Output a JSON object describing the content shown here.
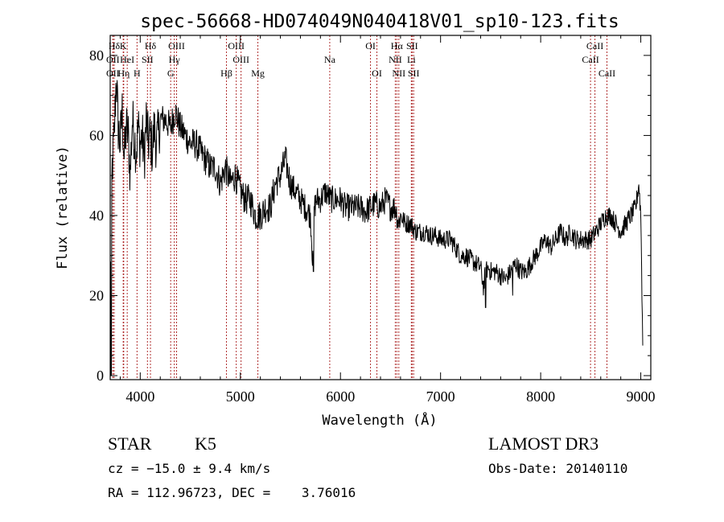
{
  "chart_data": {
    "type": "line",
    "title": "spec-56668-HD074049N040418V01_sp10-123.fits",
    "xlabel": "Wavelength (Å)",
    "ylabel": "Flux (relative)",
    "xlim": [
      3700,
      9100
    ],
    "ylim": [
      -1,
      85
    ],
    "xticks": [
      4000,
      5000,
      6000,
      7000,
      8000,
      9000
    ],
    "yticks": [
      0,
      20,
      40,
      60,
      80
    ],
    "spectrum": {
      "x": [
        3700,
        3720,
        3740,
        3760,
        3780,
        3800,
        3820,
        3840,
        3860,
        3880,
        3900,
        3920,
        3940,
        3960,
        3980,
        4000,
        4020,
        4040,
        4060,
        4080,
        4100,
        4120,
        4140,
        4160,
        4180,
        4200,
        4250,
        4300,
        4350,
        4400,
        4450,
        4500,
        4550,
        4600,
        4650,
        4700,
        4750,
        4800,
        4850,
        4900,
        4950,
        5000,
        5050,
        5100,
        5150,
        5200,
        5250,
        5300,
        5350,
        5400,
        5450,
        5500,
        5550,
        5600,
        5650,
        5700,
        5720,
        5740,
        5760,
        5800,
        5850,
        5900,
        5950,
        6000,
        6050,
        6100,
        6150,
        6200,
        6250,
        6300,
        6350,
        6400,
        6450,
        6500,
        6550,
        6580,
        6600,
        6650,
        6700,
        6750,
        6800,
        6850,
        6900,
        6950,
        7000,
        7050,
        7100,
        7150,
        7200,
        7250,
        7300,
        7350,
        7400,
        7430,
        7450,
        7480,
        7500,
        7550,
        7600,
        7650,
        7700,
        7750,
        7800,
        7850,
        7900,
        7950,
        8000,
        8050,
        8100,
        8150,
        8200,
        8250,
        8300,
        8350,
        8400,
        8450,
        8500,
        8550,
        8600,
        8650,
        8700,
        8750,
        8800,
        8850,
        8900,
        8950,
        8980,
        9000,
        9020
      ],
      "y": [
        26,
        52,
        60,
        75,
        62,
        58,
        66,
        54,
        62,
        60,
        50,
        64,
        60,
        56,
        62,
        58,
        60,
        54,
        64,
        58,
        60,
        56,
        62,
        58,
        60,
        64,
        64,
        62,
        66,
        62,
        60,
        58,
        58,
        56,
        54,
        52,
        52,
        48,
        52,
        48,
        50,
        46,
        44,
        44,
        40,
        40,
        42,
        42,
        48,
        50,
        54,
        48,
        46,
        44,
        42,
        40,
        30,
        42,
        44,
        44,
        46,
        44,
        44,
        44,
        42,
        42,
        42,
        42,
        41,
        42,
        43,
        42,
        44,
        42,
        42,
        38,
        40,
        38,
        38,
        36,
        36,
        36,
        35,
        35,
        34,
        34,
        34,
        32,
        30,
        30,
        29,
        28,
        27,
        22,
        26,
        27,
        26,
        26,
        25,
        24,
        26,
        28,
        26,
        26,
        28,
        30,
        32,
        34,
        32,
        34,
        36,
        34,
        36,
        34,
        34,
        34,
        34,
        36,
        38,
        40,
        40,
        38,
        36,
        38,
        40,
        42,
        48,
        40,
        8
      ],
      "min_spikes": [
        {
          "x": 5730,
          "y": 26
        },
        {
          "x": 7450,
          "y": 17
        },
        {
          "x": 7720,
          "y": 20
        },
        {
          "x": 3710,
          "y": 0
        }
      ]
    },
    "spectral_lines": [
      {
        "name": "Hδ",
        "x": 3740,
        "row": 1
      },
      {
        "name": "K",
        "x": 3830,
        "row": 1
      },
      {
        "name": "Hδ",
        "x": 4102,
        "row": 1
      },
      {
        "name": "OII",
        "x": 3727,
        "row": 2
      },
      {
        "name": "HeI",
        "x": 3870,
        "row": 2
      },
      {
        "name": "SII",
        "x": 4072,
        "row": 2
      },
      {
        "name": "OII",
        "x": 3727,
        "row": 3
      },
      {
        "name": "Hη",
        "x": 3835,
        "row": 3
      },
      {
        "name": "H",
        "x": 3968,
        "row": 3
      },
      {
        "name": "OIII",
        "x": 4363,
        "row": 1
      },
      {
        "name": "Hγ",
        "x": 4340,
        "row": 2
      },
      {
        "name": "G",
        "x": 4304,
        "row": 3
      },
      {
        "name": "OIII",
        "x": 4959,
        "row": 1
      },
      {
        "name": "OIII",
        "x": 5007,
        "row": 2
      },
      {
        "name": "Hβ",
        "x": 4861,
        "row": 3
      },
      {
        "name": "Mg",
        "x": 5175,
        "row": 3
      },
      {
        "name": "Na",
        "x": 5893,
        "row": 2
      },
      {
        "name": "OI",
        "x": 6300,
        "row": 1
      },
      {
        "name": "OI",
        "x": 6364,
        "row": 3
      },
      {
        "name": "Hα",
        "x": 6563,
        "row": 1
      },
      {
        "name": "SII",
        "x": 6716,
        "row": 1
      },
      {
        "name": "NII",
        "x": 6548,
        "row": 2
      },
      {
        "name": "Li",
        "x": 6708,
        "row": 2
      },
      {
        "name": "NII",
        "x": 6583,
        "row": 3
      },
      {
        "name": "SII",
        "x": 6731,
        "row": 3
      },
      {
        "name": "CaII",
        "x": 8542,
        "row": 1
      },
      {
        "name": "CaII",
        "x": 8498,
        "row": 2
      },
      {
        "name": "CaII",
        "x": 8662,
        "row": 3
      }
    ]
  },
  "info": {
    "class": "STAR",
    "subclass": "K5",
    "survey": "LAMOST DR3",
    "cz": "cz = −15.0 ± 9.4 km/s",
    "obs_date": "Obs-Date: 20140110",
    "coords": "RA = 112.96723, DEC =    3.76016"
  }
}
